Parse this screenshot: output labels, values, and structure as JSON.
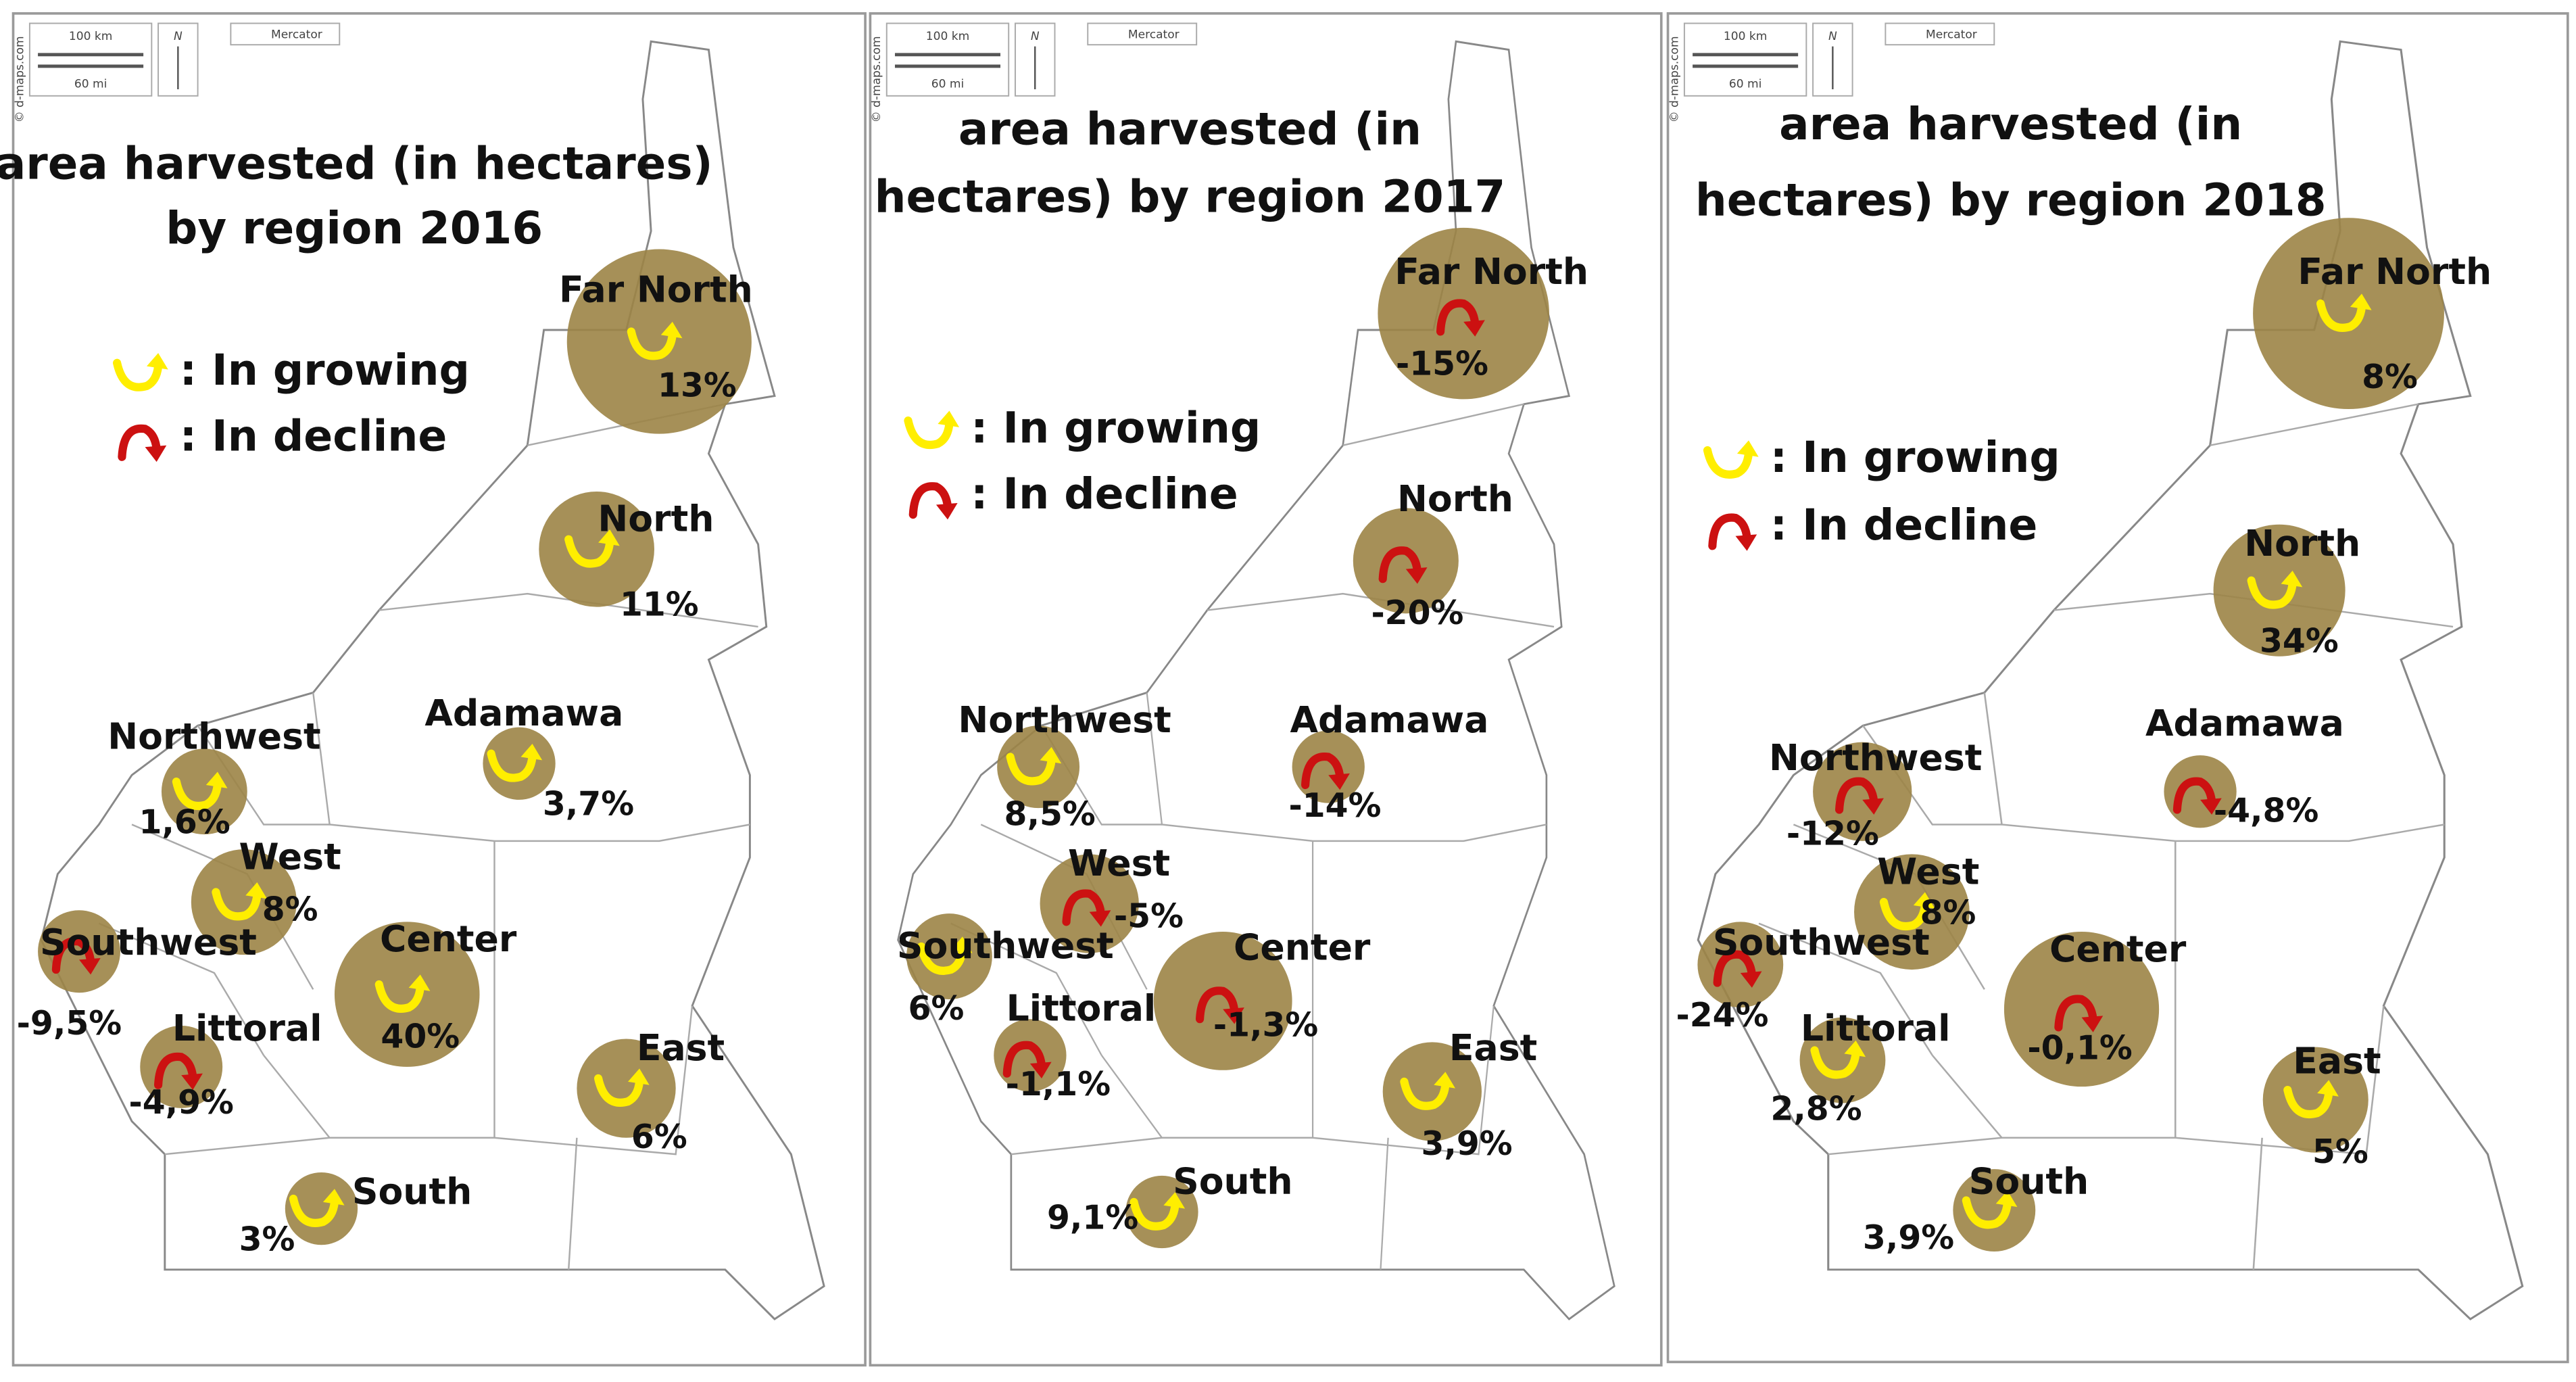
{
  "furniture": {
    "km": "100 km",
    "mi": "60 mi",
    "north": "N",
    "projection": "Mercator",
    "credit": "© d-maps.com"
  },
  "legend": {
    "growing": ": In growing",
    "decline": ": In decline"
  },
  "panels": [
    {
      "title": [
        "area harvested (in hectares)",
        "by region 2016"
      ],
      "regions": [
        {
          "name": "Far North",
          "change": "13%",
          "trend": "growing"
        },
        {
          "name": "North",
          "change": "11%",
          "trend": "growing"
        },
        {
          "name": "Adamawa",
          "change": "3,7%",
          "trend": "growing"
        },
        {
          "name": "Northwest",
          "change": "1,6%",
          "trend": "growing"
        },
        {
          "name": "West",
          "change": "8%",
          "trend": "growing"
        },
        {
          "name": "Southwest",
          "change": "-9,5%",
          "trend": "decline"
        },
        {
          "name": "Center",
          "change": "40%",
          "trend": "growing"
        },
        {
          "name": "Littoral",
          "change": "-4,9%",
          "trend": "decline"
        },
        {
          "name": "East",
          "change": "6%",
          "trend": "growing"
        },
        {
          "name": "South",
          "change": "3%",
          "trend": "growing"
        }
      ]
    },
    {
      "title": [
        "area harvested (in",
        "hectares) by region 2017"
      ],
      "regions": [
        {
          "name": "Far North",
          "change": "-15%",
          "trend": "decline"
        },
        {
          "name": "North",
          "change": "-20%",
          "trend": "decline"
        },
        {
          "name": "Adamawa",
          "change": "-14%",
          "trend": "decline"
        },
        {
          "name": "Northwest",
          "change": "8,5%",
          "trend": "growing"
        },
        {
          "name": "West",
          "change": "-5%",
          "trend": "decline"
        },
        {
          "name": "Southwest",
          "change": "6%",
          "trend": "growing"
        },
        {
          "name": "Center",
          "change": "-1,3%",
          "trend": "decline"
        },
        {
          "name": "Littoral",
          "change": "-1,1%",
          "trend": "decline"
        },
        {
          "name": "East",
          "change": "3,9%",
          "trend": "growing"
        },
        {
          "name": "South",
          "change": "9,1%",
          "trend": "growing"
        }
      ]
    },
    {
      "title": [
        "area harvested (in",
        "hectares) by region 2018"
      ],
      "regions": [
        {
          "name": "Far North",
          "change": "8%",
          "trend": "growing"
        },
        {
          "name": "North",
          "change": "34%",
          "trend": "growing"
        },
        {
          "name": "Adamawa",
          "change": "-4,8%",
          "trend": "decline"
        },
        {
          "name": "Northwest",
          "change": "-12%",
          "trend": "decline"
        },
        {
          "name": "West",
          "change": "8%",
          "trend": "growing"
        },
        {
          "name": "Southwest",
          "change": "-24%",
          "trend": "decline"
        },
        {
          "name": "Center",
          "change": "-0,1%",
          "trend": "decline"
        },
        {
          "name": "Littoral",
          "change": "2,8%",
          "trend": "growing"
        },
        {
          "name": "East",
          "change": "5%",
          "trend": "growing"
        },
        {
          "name": "South",
          "change": "3,9%",
          "trend": "growing"
        }
      ]
    }
  ]
}
